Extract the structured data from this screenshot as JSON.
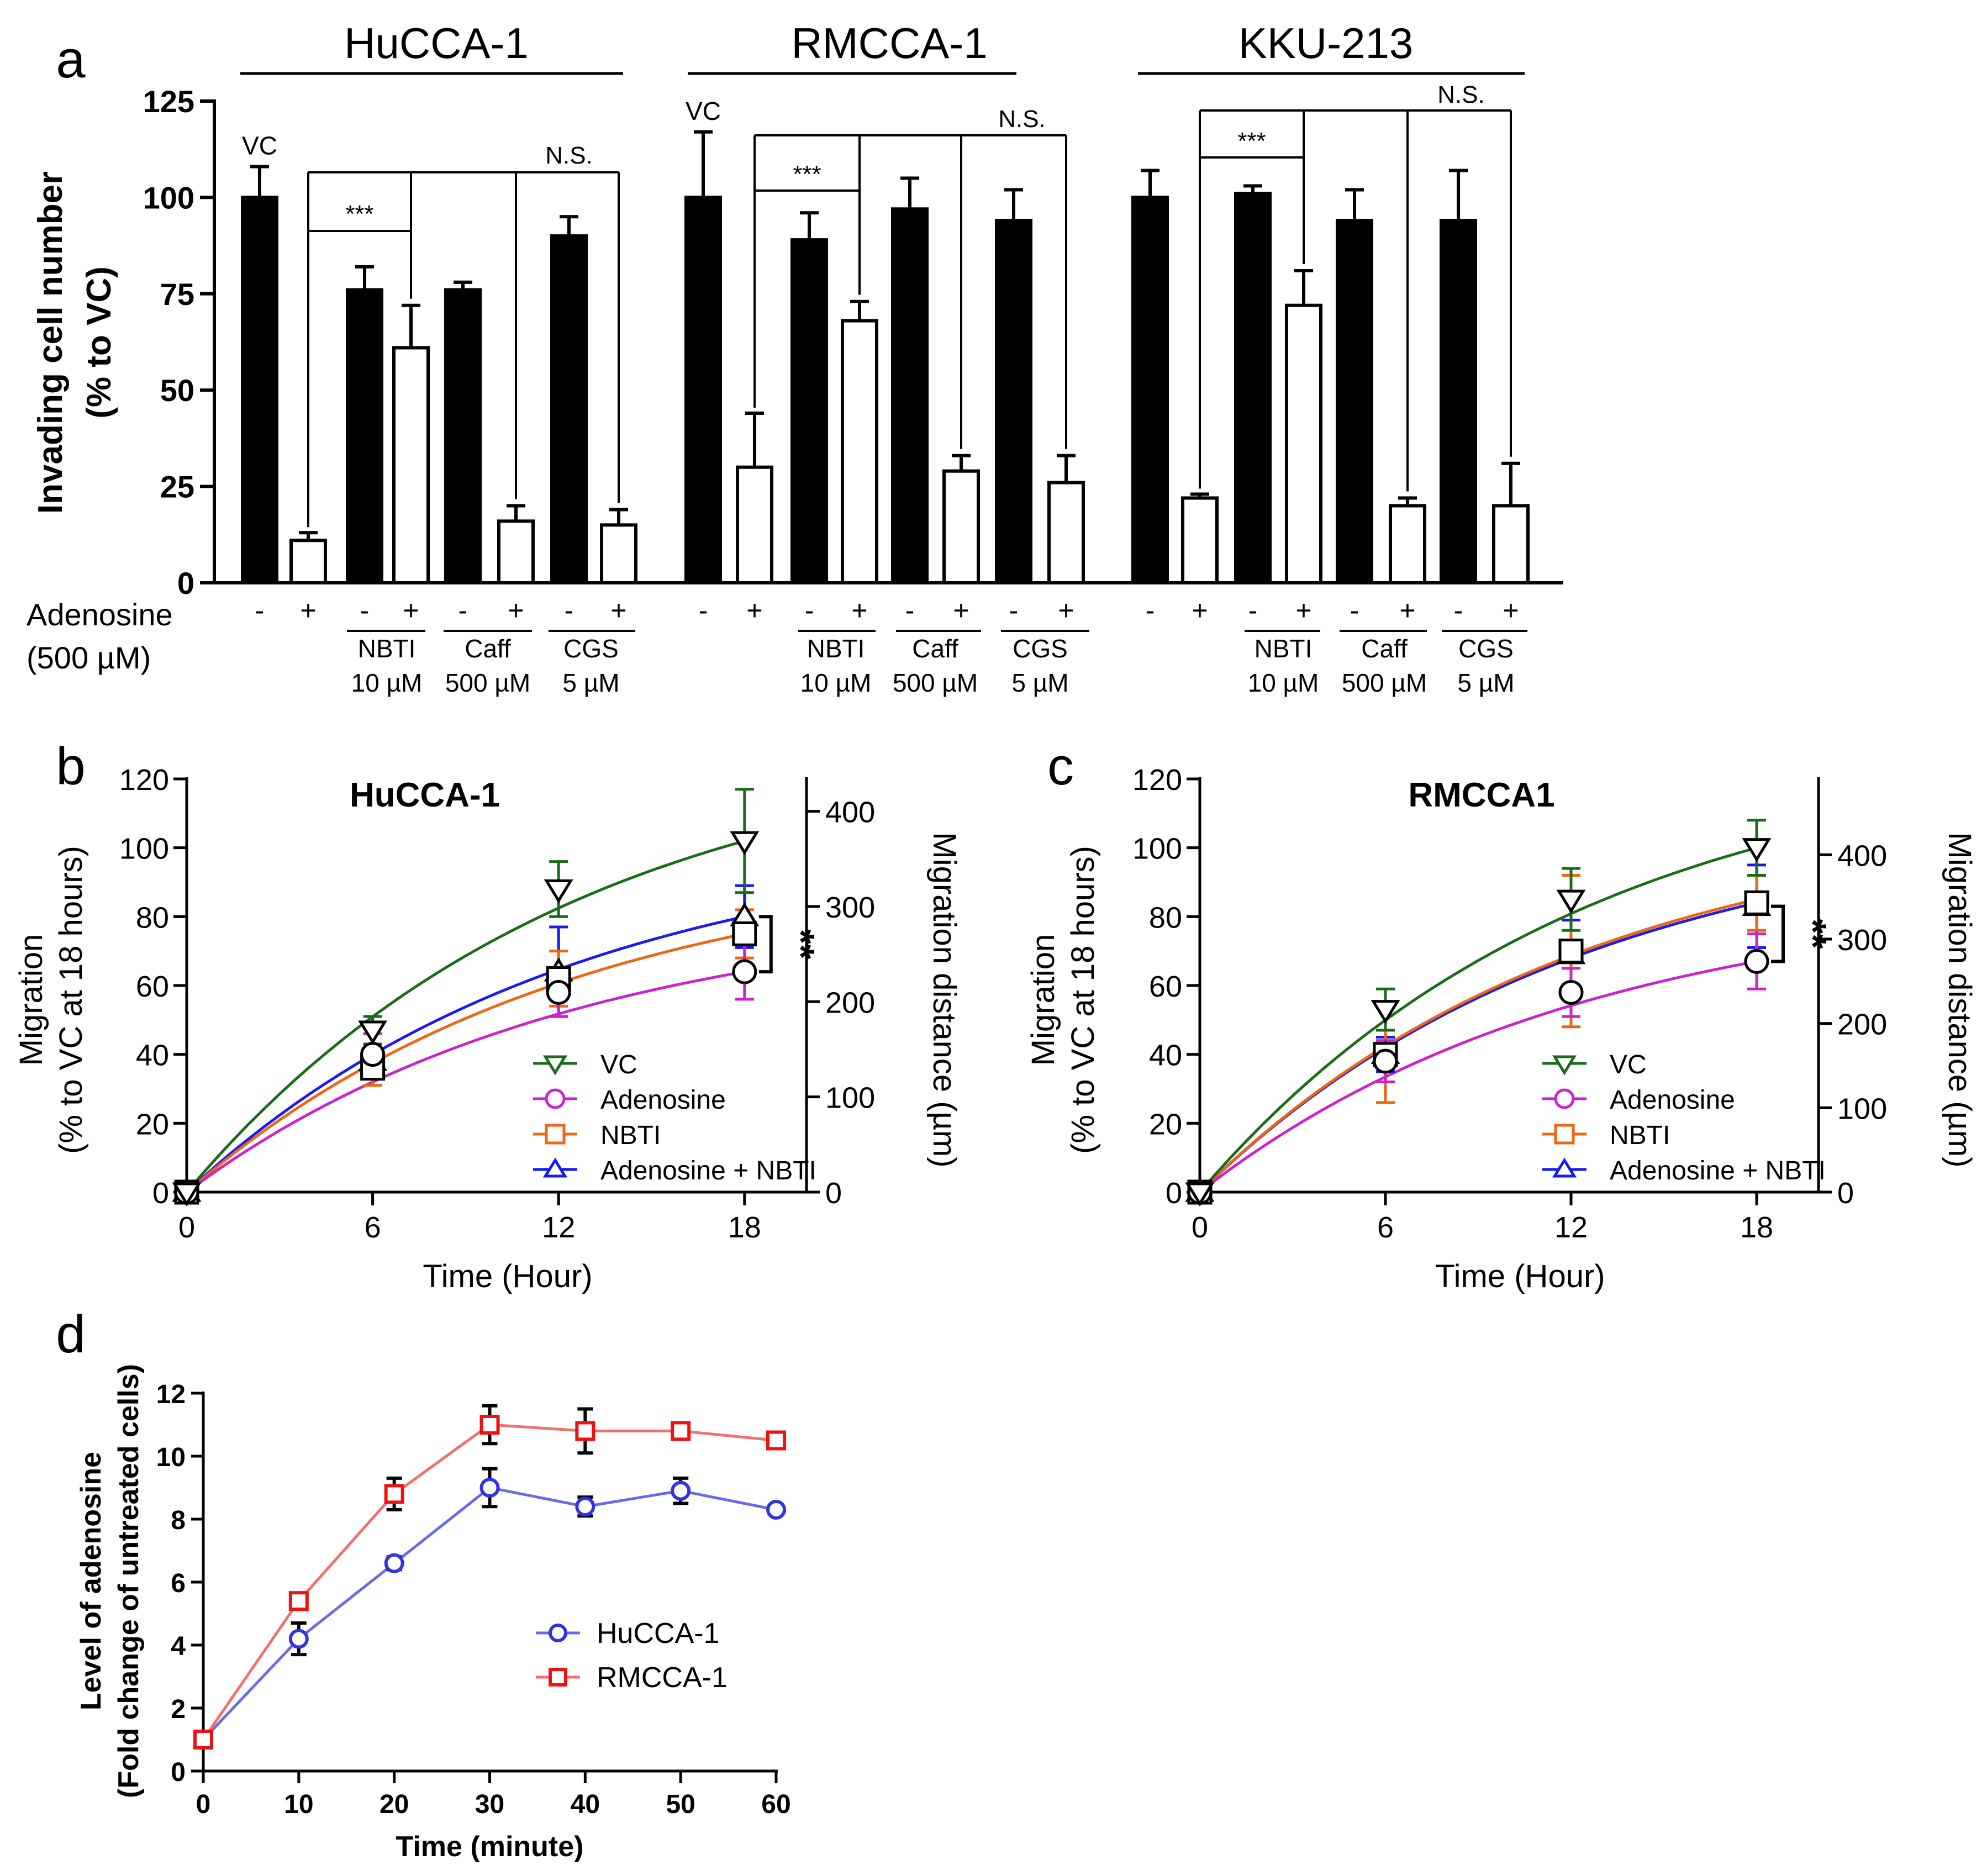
{
  "chart_data": [
    {
      "panel": "a",
      "type": "bar",
      "ylabel": [
        "Invading cell number",
        "(% to VC)"
      ],
      "ylim": [
        0,
        125
      ],
      "yticks": [
        0,
        25,
        50,
        75,
        100,
        125
      ],
      "xlabel": [
        "Adenosine",
        "(500 µM)"
      ],
      "groups": [
        {
          "name": "HuCCA-1",
          "bars": [
            {
              "adenosine": "-",
              "fill": "black",
              "value": 100,
              "err": 8
            },
            {
              "adenosine": "+",
              "fill": "white",
              "value": 11,
              "err": 2
            },
            {
              "adenosine": "-",
              "fill": "black",
              "value": 76,
              "err": 6
            },
            {
              "adenosine": "+",
              "fill": "white",
              "value": 61,
              "err": 11
            },
            {
              "adenosine": "-",
              "fill": "black",
              "value": 76,
              "err": 2
            },
            {
              "adenosine": "+",
              "fill": "white",
              "value": 16,
              "err": 4
            },
            {
              "adenosine": "-",
              "fill": "black",
              "value": 90,
              "err": 5
            },
            {
              "adenosine": "+",
              "fill": "white",
              "value": 15,
              "err": 4
            }
          ],
          "treatments": [
            {
              "name": "NBTI",
              "dose": "10 µM"
            },
            {
              "name": "Caff",
              "dose": "500 µM"
            },
            {
              "name": "CGS",
              "dose": "5 µM"
            }
          ],
          "annotations": {
            "vc": "VC",
            "sig": "***",
            "ns": "N.S."
          }
        },
        {
          "name": "RMCCA-1",
          "bars": [
            {
              "adenosine": "-",
              "fill": "black",
              "value": 100,
              "err": 17
            },
            {
              "adenosine": "+",
              "fill": "white",
              "value": 30,
              "err": 14
            },
            {
              "adenosine": "-",
              "fill": "black",
              "value": 89,
              "err": 7
            },
            {
              "adenosine": "+",
              "fill": "white",
              "value": 68,
              "err": 5
            },
            {
              "adenosine": "-",
              "fill": "black",
              "value": 97,
              "err": 8
            },
            {
              "adenosine": "+",
              "fill": "white",
              "value": 29,
              "err": 4
            },
            {
              "adenosine": "-",
              "fill": "black",
              "value": 94,
              "err": 8
            },
            {
              "adenosine": "+",
              "fill": "white",
              "value": 26,
              "err": 7
            }
          ],
          "treatments": [
            {
              "name": "NBTI",
              "dose": "10 µM"
            },
            {
              "name": "Caff",
              "dose": "500 µM"
            },
            {
              "name": "CGS",
              "dose": "5 µM"
            }
          ],
          "annotations": {
            "vc": "VC",
            "sig": "***",
            "ns": "N.S."
          }
        },
        {
          "name": "KKU-213",
          "bars": [
            {
              "adenosine": "-",
              "fill": "black",
              "value": 100,
              "err": 7
            },
            {
              "adenosine": "+",
              "fill": "white",
              "value": 22,
              "err": 1
            },
            {
              "adenosine": "-",
              "fill": "black",
              "value": 101,
              "err": 2
            },
            {
              "adenosine": "+",
              "fill": "white",
              "value": 72,
              "err": 9
            },
            {
              "adenosine": "-",
              "fill": "black",
              "value": 94,
              "err": 8
            },
            {
              "adenosine": "+",
              "fill": "white",
              "value": 20,
              "err": 2
            },
            {
              "adenosine": "-",
              "fill": "black",
              "value": 94,
              "err": 13
            },
            {
              "adenosine": "+",
              "fill": "white",
              "value": 20,
              "err": 11
            }
          ],
          "treatments": [
            {
              "name": "NBTI",
              "dose": "10 µM"
            },
            {
              "name": "Caff",
              "dose": "500 µM"
            },
            {
              "name": "CGS",
              "dose": "5 µM"
            }
          ],
          "annotations": {
            "sig": "***",
            "ns": "N.S."
          }
        }
      ]
    },
    {
      "panel": "b",
      "type": "line",
      "title": "HuCCA-1",
      "x": [
        0,
        6,
        12,
        18
      ],
      "xticks": [
        0,
        6,
        12,
        18
      ],
      "xlim": [
        0,
        20
      ],
      "xlabel": "Time (Hour)",
      "ylabel": [
        "Migration",
        "(% to  VC at 18 hours)"
      ],
      "ylim": [
        0,
        120
      ],
      "yticks": [
        0,
        20,
        40,
        60,
        80,
        100,
        120
      ],
      "y2label": "Migration distance (µm)",
      "y2ticks": [
        0,
        100,
        200,
        300,
        400
      ],
      "y2max": 434,
      "sig_label": "**",
      "series": [
        {
          "name": "VC",
          "color": "#1a6b1a",
          "marker": "triangle-down",
          "values": [
            0,
            47,
            88,
            102
          ],
          "err": [
            0,
            4,
            8,
            15
          ],
          "fit_end": 102
        },
        {
          "name": "Adenosine",
          "color": "#cc22cc",
          "marker": "circle",
          "values": [
            0,
            40,
            58,
            64
          ],
          "err": [
            0,
            6,
            7,
            8
          ],
          "fit_end": 64
        },
        {
          "name": "NBTI",
          "color": "#ee6611",
          "marker": "square",
          "values": [
            0,
            36,
            62,
            75
          ],
          "err": [
            0,
            5,
            8,
            7
          ],
          "fit_end": 75
        },
        {
          "name": "Adenosine + NBTI",
          "color": "#1a1aee",
          "marker": "triangle-up",
          "values": [
            0,
            38,
            64,
            80
          ],
          "err": [
            0,
            5,
            13,
            9
          ],
          "fit_end": 80
        }
      ]
    },
    {
      "panel": "c",
      "type": "line",
      "title": "RMCCA1",
      "x": [
        0,
        6,
        12,
        18
      ],
      "xticks": [
        0,
        6,
        12,
        18
      ],
      "xlim": [
        0,
        20
      ],
      "xlabel": "Time (Hour)",
      "ylabel": [
        "Migration",
        "(% to  VC at 18 hours)"
      ],
      "ylim": [
        0,
        120
      ],
      "yticks": [
        0,
        20,
        40,
        60,
        80,
        100,
        120
      ],
      "y2label": "Migration distance (µm)",
      "y2ticks": [
        0,
        100,
        200,
        300,
        400
      ],
      "y2max": 490,
      "sig_label": "**",
      "series": [
        {
          "name": "VC",
          "color": "#1a6b1a",
          "marker": "triangle-down",
          "values": [
            0,
            53,
            85,
            100
          ],
          "err": [
            0,
            6,
            9,
            8
          ],
          "fit_end": 100
        },
        {
          "name": "Adenosine",
          "color": "#cc22cc",
          "marker": "circle",
          "values": [
            0,
            38,
            58,
            67
          ],
          "err": [
            0,
            6,
            7,
            8
          ],
          "fit_end": 67
        },
        {
          "name": "NBTI",
          "color": "#ee6611",
          "marker": "square",
          "values": [
            0,
            40,
            70,
            84
          ],
          "err": [
            0,
            14,
            22,
            8
          ],
          "fit_end": 85
        },
        {
          "name": "Adenosine + NBTI",
          "color": "#1a1aee",
          "marker": "triangle-up",
          "values": [
            0,
            40,
            69,
            83
          ],
          "err": [
            0,
            5,
            10,
            12
          ],
          "fit_end": 84
        }
      ]
    },
    {
      "panel": "d",
      "type": "line",
      "x": [
        0,
        10,
        20,
        30,
        40,
        50,
        60
      ],
      "xticks": [
        0,
        10,
        20,
        30,
        40,
        50,
        60
      ],
      "xlim": [
        0,
        60
      ],
      "xlabel": "Time (minute)",
      "ylabel": [
        "Level of adenosine",
        "(Fold change of untreated cells)"
      ],
      "ylim": [
        0,
        12
      ],
      "yticks": [
        0,
        2,
        4,
        6,
        8,
        10,
        12
      ],
      "series": [
        {
          "name": "HuCCA-1",
          "color": "#3333dd",
          "line_color": "#6a6ae6",
          "marker": "circle",
          "values": [
            1.0,
            4.2,
            6.6,
            9.0,
            8.4,
            8.9,
            8.3
          ],
          "err": [
            0,
            0.5,
            0.2,
            0.6,
            0.3,
            0.4,
            0.1
          ]
        },
        {
          "name": "RMCCA-1",
          "color": "#ee1111",
          "line_color": "#f07070",
          "marker": "square",
          "values": [
            1.0,
            5.4,
            8.8,
            11.0,
            10.8,
            10.8,
            10.5
          ],
          "err": [
            0,
            0.2,
            0.5,
            0.6,
            0.7,
            0.2,
            0.2
          ]
        }
      ]
    }
  ],
  "panel_labels": {
    "a": "a",
    "b": "b",
    "c": "c",
    "d": "d"
  }
}
